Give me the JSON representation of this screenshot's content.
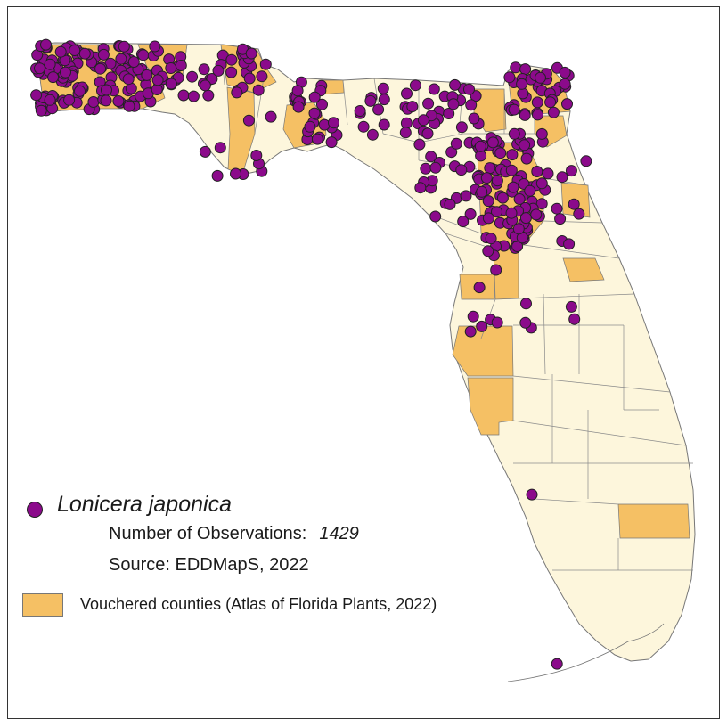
{
  "colors": {
    "state_fill": "#fdf6dc",
    "vouchered_fill": "#f5c064",
    "county_border": "#777777",
    "dot_fill": "#8b0a8b",
    "dot_stroke": "#222222"
  },
  "legend": {
    "species": "Lonicera japonica",
    "observations_label": "Number of Observations:",
    "observations_count": "1429",
    "source": "Source: EDDMapS, 2022",
    "vouchered_label": "Vouchered counties (Atlas of Florida Plants, 2022)"
  }
}
